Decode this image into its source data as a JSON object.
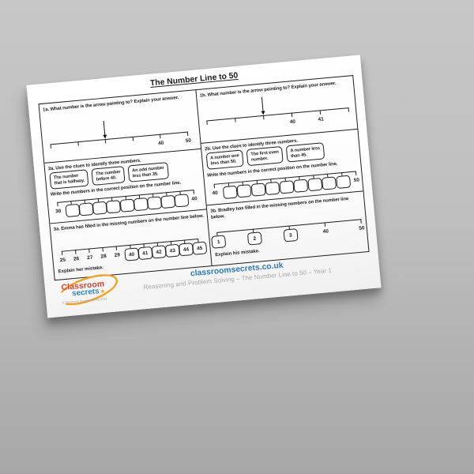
{
  "title": "The Number Line to 50",
  "colors": {
    "paper": "#ffffff",
    "ink": "#1a1a1a",
    "footer_link_blue": "#2e79bd",
    "footer_subtitle_gray": "#a8a8a8",
    "logo_red": "#dd3b28",
    "logo_blue": "#2e86c8",
    "logo_orange": "#f5a21b",
    "background_gray": "#b5b5b5"
  },
  "sections": {
    "q1a": {
      "prompt": "1a. What number is the arrow pointing to? Explain your answer.",
      "numberline": {
        "arrow_index": 2,
        "positions": [
          {
            "t": "tick"
          },
          {
            "t": "tick"
          },
          {
            "t": "tick"
          },
          {
            "t": "tick"
          },
          {
            "t": "tick",
            "v": "40"
          },
          {
            "t": "tick",
            "v": "50"
          }
        ]
      }
    },
    "q1b": {
      "prompt": "1b. What number is the arrow pointing to? Explain your answer.",
      "numberline": {
        "arrow_index": 2,
        "positions": [
          {
            "t": "tick"
          },
          {
            "t": "tick"
          },
          {
            "t": "tick"
          },
          {
            "t": "tick",
            "v": "40"
          },
          {
            "t": "tick",
            "v": "41"
          },
          {
            "t": "tick"
          }
        ]
      }
    },
    "q2a": {
      "prompt": "2a. Use the clues to identify three numbers.",
      "clues": [
        [
          "The number",
          "that is halfway."
        ],
        [
          "The number",
          "before 40."
        ],
        [
          "An odd number",
          "less than 35."
        ]
      ],
      "write_prompt": "Write the numbers in the correct position on the number line.",
      "numberline": {
        "arrow_index": null,
        "positions": [
          {
            "t": "tick",
            "v": "30"
          },
          {
            "t": "box"
          },
          {
            "t": "box"
          },
          {
            "t": "box"
          },
          {
            "t": "box"
          },
          {
            "t": "box"
          },
          {
            "t": "box"
          },
          {
            "t": "box"
          },
          {
            "t": "box"
          },
          {
            "t": "box"
          },
          {
            "t": "tick",
            "v": "40"
          }
        ]
      }
    },
    "q2b": {
      "prompt": "2b. Use the clues to identify three numbers.",
      "clues": [
        [
          "A number one",
          "less than 50."
        ],
        [
          "The first even",
          "number."
        ],
        [
          "A number less",
          "than 45."
        ]
      ],
      "write_prompt": "Write the numbers in the correct position on the number line.",
      "numberline": {
        "arrow_index": null,
        "positions": [
          {
            "t": "tick",
            "v": "40"
          },
          {
            "t": "box"
          },
          {
            "t": "box"
          },
          {
            "t": "box"
          },
          {
            "t": "box"
          },
          {
            "t": "box"
          },
          {
            "t": "box"
          },
          {
            "t": "box"
          },
          {
            "t": "box"
          },
          {
            "t": "box"
          },
          {
            "t": "tick",
            "v": "50"
          }
        ]
      }
    },
    "q3a": {
      "prompt": "3a. Emma has filled in the missing numbers on the number line below.",
      "numberline": {
        "arrow_index": null,
        "positions": [
          {
            "t": "tick",
            "v": "25"
          },
          {
            "t": "tick",
            "v": "26"
          },
          {
            "t": "tick",
            "v": "27"
          },
          {
            "t": "tick",
            "v": "28"
          },
          {
            "t": "tick",
            "v": "29"
          },
          {
            "t": "box",
            "v": "40"
          },
          {
            "t": "box",
            "v": "41"
          },
          {
            "t": "box",
            "v": "42"
          },
          {
            "t": "box",
            "v": "43"
          },
          {
            "t": "box",
            "v": "44"
          },
          {
            "t": "box",
            "v": "45"
          }
        ]
      },
      "explain": "Explain her mistake."
    },
    "q3b": {
      "prompt": "3b. Bradley has filled in the missing numbers on the number line below.",
      "numberline": {
        "arrow_index": null,
        "positions": [
          {
            "t": "box",
            "v": "1"
          },
          {
            "t": "box",
            "v": "2"
          },
          {
            "t": "box",
            "v": "3"
          },
          {
            "t": "tick",
            "v": "40"
          },
          {
            "t": "tick",
            "v": "50"
          }
        ]
      },
      "explain": "Explain his mistake."
    }
  },
  "footer": {
    "site": "classroomsecrets.co.uk",
    "subtitle": "Reasoning and Problem Solving – The Number Line to 50 – Year 1",
    "copyright": "© Classroom Secrets Limited 2023"
  },
  "logo": {
    "line1": "Classroom",
    "line2": "secrets",
    "star": "★"
  }
}
